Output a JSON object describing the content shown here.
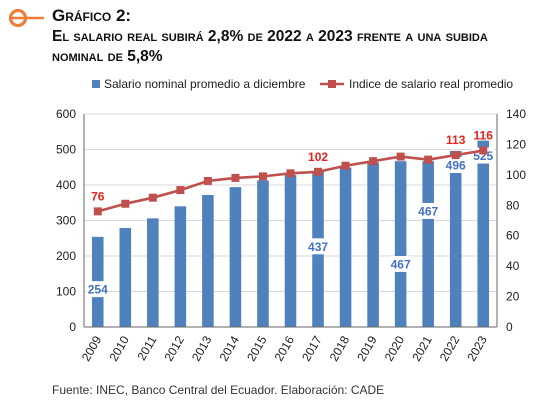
{
  "header": {
    "title": "Gráfico 2:",
    "subtitle_line1": "El salario real subirá 2,8% de 2022 a 2023 frente a una subida",
    "subtitle_line2": "nominal de 5,8%"
  },
  "source": "Fuente: INEC, Banco Central del Ecuador. Elaboración: CADE",
  "colors": {
    "bar": "#4f81bd",
    "line": "#c0504d",
    "accent": "#f07c3a",
    "label_red": "#e8231d",
    "label_blue": "#4472c4"
  },
  "chart_data": {
    "type": "bar+line",
    "categories": [
      "2009",
      "2010",
      "2011",
      "2012",
      "2013",
      "2014",
      "2015",
      "2016",
      "2017",
      "2018",
      "2019",
      "2020",
      "2021",
      "2022",
      "2023"
    ],
    "series": [
      {
        "name": "Salario nominal promedio a diciembre",
        "type": "bar",
        "axis": "left",
        "values": [
          254,
          279,
          306,
          340,
          372,
          394,
          413,
          428,
          437,
          449,
          464,
          467,
          467,
          496,
          525
        ]
      },
      {
        "name": "Indice de salario real promedio",
        "type": "line",
        "axis": "right",
        "values": [
          76,
          81,
          85,
          90,
          96,
          98,
          99,
          101,
          102,
          106,
          109,
          112,
          110,
          113,
          116
        ]
      }
    ],
    "data_labels": {
      "bar": {
        "0": "254",
        "8": "437",
        "11": "467",
        "12": "467",
        "13": "496",
        "14": "525"
      },
      "line": {
        "0": "76",
        "8": "102",
        "13": "113",
        "14": "116"
      }
    },
    "y_left": {
      "min": 0,
      "max": 600,
      "step": 100,
      "ticks": [
        "0",
        "100",
        "200",
        "300",
        "400",
        "500",
        "600"
      ]
    },
    "y_right": {
      "min": 0,
      "max": 140,
      "step": 20,
      "ticks": [
        "0",
        "20",
        "40",
        "60",
        "80",
        "100",
        "120",
        "140"
      ]
    },
    "legend_position": "top",
    "grid": true
  }
}
